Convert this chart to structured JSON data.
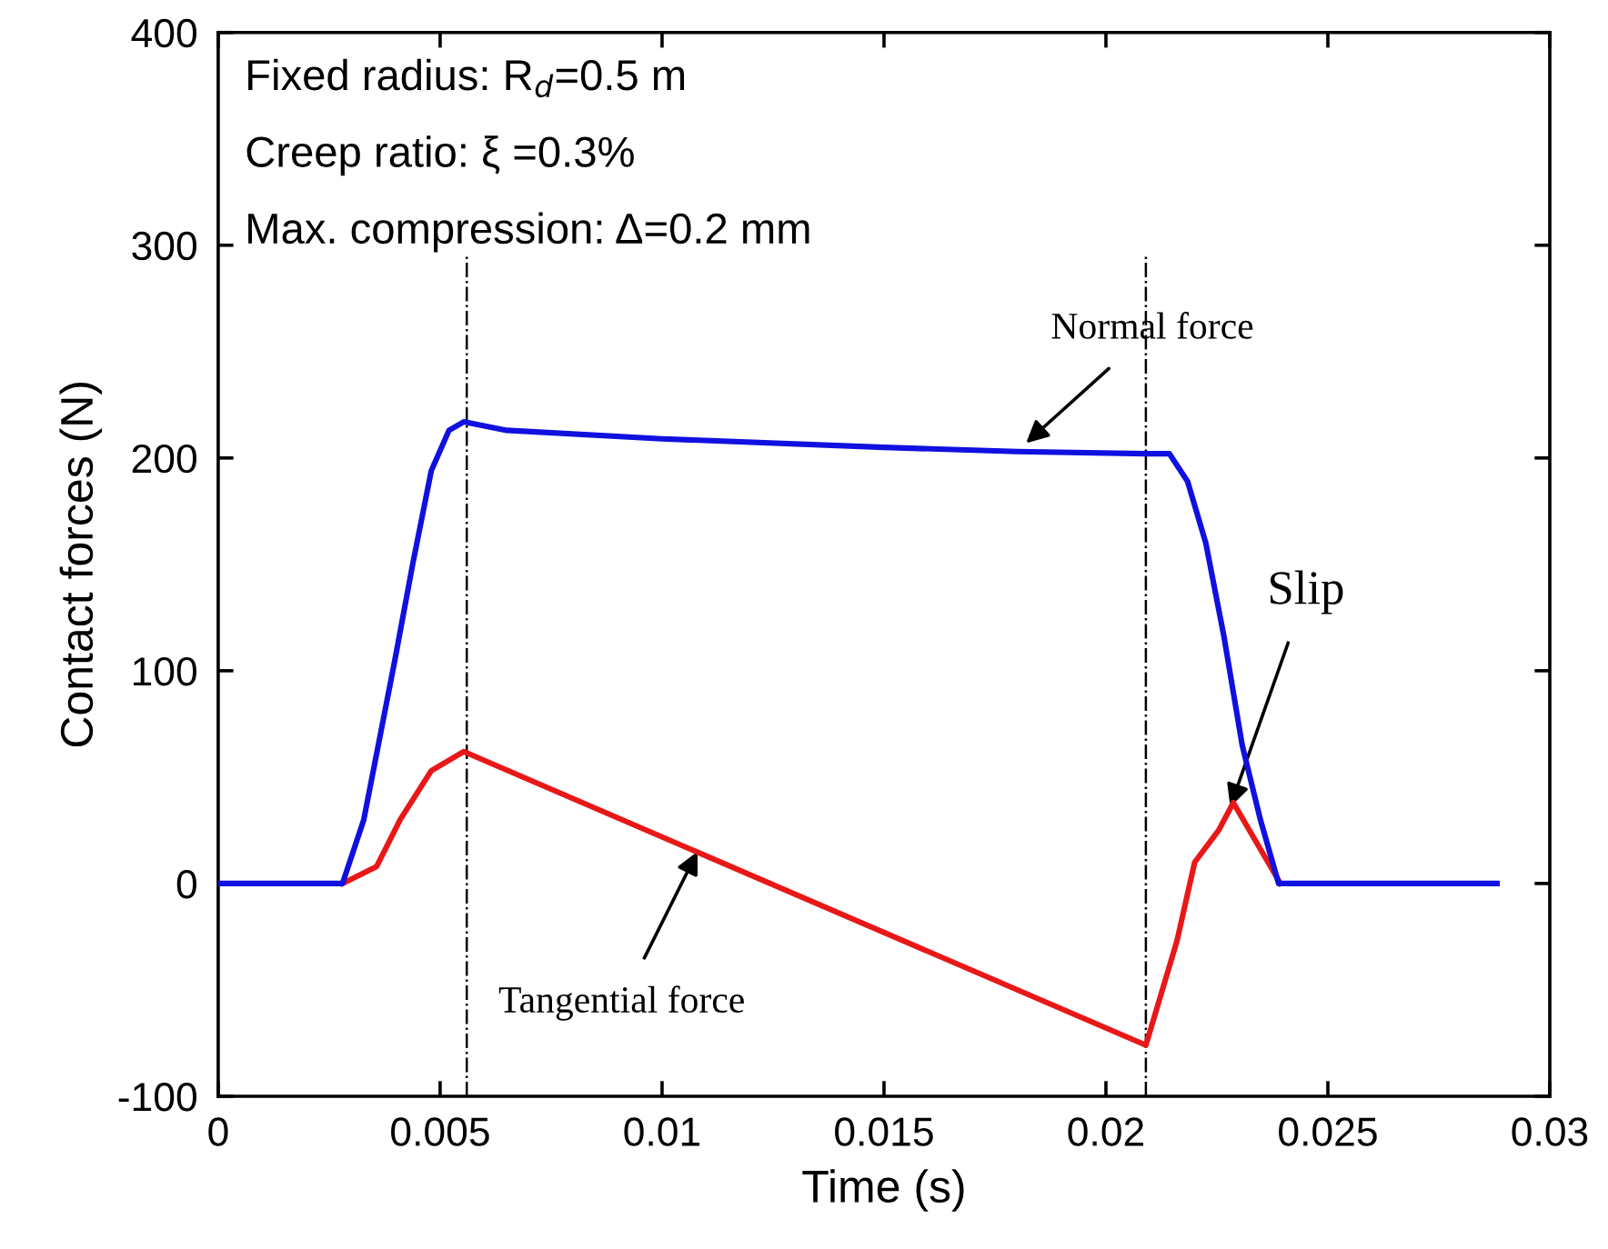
{
  "chart_data": {
    "type": "line",
    "xlabel": "Time (s)",
    "ylabel": "Contact forces (N)",
    "xlim": [
      0,
      0.03
    ],
    "xticks": [
      0,
      0.005,
      0.01,
      0.015,
      0.02,
      0.025,
      0.03
    ],
    "ylim": [
      -100,
      400
    ],
    "yticks": [
      -100,
      0,
      100,
      200,
      300,
      400
    ],
    "grid": false,
    "legend": false,
    "marker": "none",
    "line_style": "solid",
    "series": [
      {
        "color": "#1010e0",
        "x": [
          0,
          0.0028,
          0.00328,
          0.00398,
          0.00439,
          0.0048,
          0.0052,
          0.00553,
          0.0065,
          0.01,
          0.015,
          0.018,
          0.0209,
          0.02143,
          0.02184,
          0.02225,
          0.02266,
          0.02307,
          0.02348,
          0.02389,
          0.02881
        ],
        "values": [
          0,
          0,
          30,
          105,
          151,
          194,
          213,
          217,
          213,
          209,
          205,
          203,
          202,
          202,
          189,
          160,
          116,
          65,
          30,
          0,
          0
        ]
      },
      {
        "color": "#e81818",
        "x": [
          0.0028,
          0.00357,
          0.0041,
          0.0048,
          0.00553,
          0.0209,
          0.0216,
          0.022,
          0.02254,
          0.02287,
          0.02393
        ],
        "values": [
          0,
          8,
          30,
          53,
          62,
          -76,
          -27,
          10,
          25,
          38,
          0
        ]
      }
    ],
    "ref_lines": [
      {
        "axis": "x",
        "value": 0.0056,
        "label": null,
        "color": "#000000",
        "line_style": "dashdot"
      },
      {
        "axis": "x",
        "value": 0.0209,
        "label": null,
        "color": "#000000",
        "line_style": "dashdot"
      }
    ],
    "annotations": [
      "Fixed radius: R$_{d}$=0.5 m",
      "Creep ratio: ξ =0.3%",
      "Max. compression: Δ=0.2 mm",
      {
        "text": "Normal force",
        "x": 0.0182,
        "y": 207
      },
      {
        "text": "Tangential force",
        "x": 0.0108,
        "y": 15
      },
      {
        "text": "Slip",
        "x": 0.0228,
        "y": 36
      }
    ]
  }
}
